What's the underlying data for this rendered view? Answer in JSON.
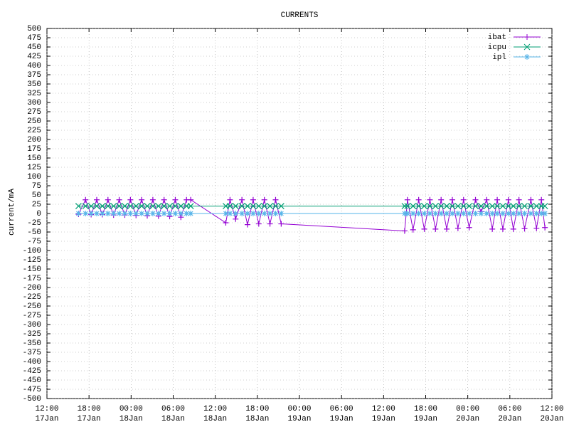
{
  "chart_data": {
    "type": "line",
    "title": "CURRENTS",
    "ylabel": "current/mA",
    "x": [
      "17Jan 16:30",
      "17Jan 17:30",
      "17Jan 18:18",
      "17Jan 19:06",
      "17Jan 19:54",
      "17Jan 20:42",
      "17Jan 21:30",
      "17Jan 22:18",
      "17Jan 23:06",
      "17Jan 23:54",
      "18Jan 00:42",
      "18Jan 01:30",
      "18Jan 02:18",
      "18Jan 03:06",
      "18Jan 03:54",
      "18Jan 04:42",
      "18Jan 05:30",
      "18Jan 06:18",
      "18Jan 07:06",
      "18Jan 07:54",
      "18Jan 08:30",
      "18Jan 13:30",
      "18Jan 14:06",
      "18Jan 14:54",
      "18Jan 15:48",
      "18Jan 16:36",
      "18Jan 17:24",
      "18Jan 18:12",
      "18Jan 19:00",
      "18Jan 19:48",
      "18Jan 20:36",
      "18Jan 21:24",
      "19Jan 15:00",
      "19Jan 15:24",
      "19Jan 16:12",
      "19Jan 17:00",
      "19Jan 17:48",
      "19Jan 18:36",
      "19Jan 19:24",
      "19Jan 20:12",
      "19Jan 21:00",
      "19Jan 21:48",
      "19Jan 22:36",
      "19Jan 23:24",
      "20Jan 00:12",
      "20Jan 01:06",
      "20Jan 01:54",
      "20Jan 02:42",
      "20Jan 03:30",
      "20Jan 04:12",
      "20Jan 05:00",
      "20Jan 05:48",
      "20Jan 06:30",
      "20Jan 07:18",
      "20Jan 08:06",
      "20Jan 09:00",
      "20Jan 09:48",
      "20Jan 10:30",
      "20Jan 11:00"
    ],
    "series": [
      {
        "name": "ibat",
        "color": "#9400d3",
        "marker": "plus",
        "values": [
          -2,
          37,
          -3,
          37,
          -3,
          37,
          -4,
          37,
          -4,
          37,
          -5,
          37,
          -6,
          37,
          -7,
          37,
          -8,
          37,
          -10,
          37,
          37,
          -25,
          37,
          -15,
          37,
          -30,
          37,
          -28,
          37,
          -28,
          37,
          -28,
          -47,
          37,
          -44,
          37,
          -42,
          37,
          -42,
          37,
          -42,
          37,
          -40,
          37,
          -38,
          37,
          5,
          37,
          -42,
          37,
          -42,
          37,
          -42,
          37,
          -41,
          37,
          -40,
          37,
          -38
        ]
      },
      {
        "name": "icpu",
        "color": "#009e73",
        "marker": "cross",
        "values": [
          20,
          20,
          20,
          20,
          20,
          20,
          20,
          20,
          20,
          20,
          20,
          20,
          20,
          20,
          20,
          20,
          20,
          20,
          20,
          20,
          20,
          20,
          20,
          20,
          20,
          20,
          20,
          20,
          20,
          20,
          20,
          20,
          20,
          20,
          20,
          20,
          20,
          20,
          20,
          20,
          20,
          20,
          20,
          20,
          20,
          20,
          20,
          20,
          20,
          20,
          20,
          20,
          20,
          20,
          20,
          20,
          20,
          20,
          20
        ]
      },
      {
        "name": "ipl",
        "color": "#56b4e9",
        "marker": "star",
        "values": [
          0,
          0,
          0,
          0,
          0,
          0,
          0,
          0,
          0,
          0,
          0,
          0,
          0,
          0,
          0,
          0,
          0,
          0,
          0,
          0,
          0,
          0,
          0,
          0,
          0,
          0,
          0,
          0,
          0,
          0,
          0,
          0,
          0,
          0,
          0,
          0,
          0,
          0,
          0,
          0,
          0,
          0,
          0,
          0,
          0,
          0,
          0,
          0,
          0,
          0,
          0,
          0,
          0,
          0,
          0,
          0,
          0,
          0,
          0
        ]
      }
    ],
    "xlim": [
      "17Jan 12:00",
      "20Jan 12:00"
    ],
    "xticks": [
      {
        "value": "17Jan 12:00",
        "label": [
          "12:00",
          "17Jan"
        ]
      },
      {
        "value": "17Jan 18:00",
        "label": [
          "18:00",
          "17Jan"
        ]
      },
      {
        "value": "18Jan 00:00",
        "label": [
          "00:00",
          "18Jan"
        ]
      },
      {
        "value": "18Jan 06:00",
        "label": [
          "06:00",
          "18Jan"
        ]
      },
      {
        "value": "18Jan 12:00",
        "label": [
          "12:00",
          "18Jan"
        ]
      },
      {
        "value": "18Jan 18:00",
        "label": [
          "18:00",
          "18Jan"
        ]
      },
      {
        "value": "19Jan 00:00",
        "label": [
          "00:00",
          "19Jan"
        ]
      },
      {
        "value": "19Jan 06:00",
        "label": [
          "06:00",
          "19Jan"
        ]
      },
      {
        "value": "19Jan 12:00",
        "label": [
          "12:00",
          "19Jan"
        ]
      },
      {
        "value": "19Jan 18:00",
        "label": [
          "18:00",
          "19Jan"
        ]
      },
      {
        "value": "20Jan 00:00",
        "label": [
          "00:00",
          "20Jan"
        ]
      },
      {
        "value": "20Jan 06:00",
        "label": [
          "06:00",
          "20Jan"
        ]
      },
      {
        "value": "20Jan 12:00",
        "label": [
          "12:00",
          "20Jan"
        ]
      }
    ],
    "ylim": [
      -500,
      500
    ],
    "yticks": [
      -500,
      -475,
      -450,
      -425,
      -400,
      -375,
      -350,
      -325,
      -300,
      -275,
      -250,
      -225,
      -200,
      -175,
      -150,
      -125,
      -100,
      -75,
      -50,
      -25,
      0,
      25,
      50,
      75,
      100,
      125,
      150,
      175,
      200,
      225,
      250,
      275,
      300,
      325,
      350,
      375,
      400,
      425,
      450,
      475,
      500
    ],
    "grid": true,
    "legend": "top-right"
  }
}
